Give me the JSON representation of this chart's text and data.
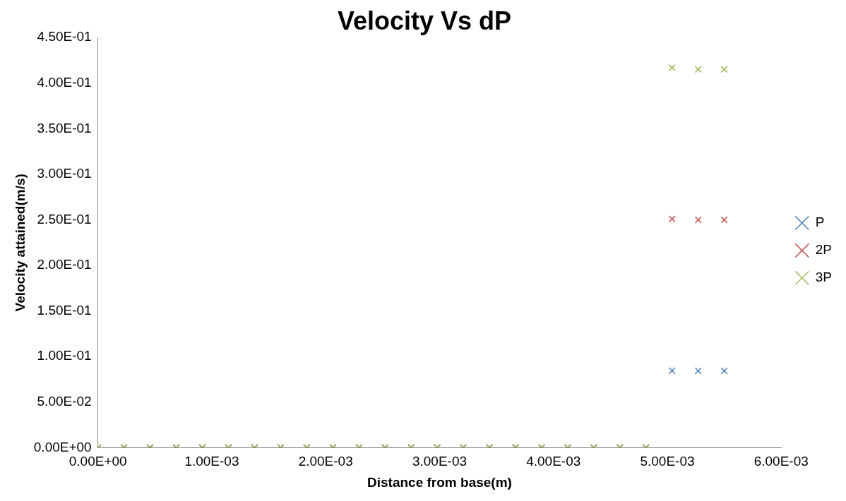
{
  "chart_data": {
    "type": "scatter",
    "title": "Velocity Vs dP",
    "xlabel": "Distance from base(m)",
    "ylabel": "Velocity attained(m/s)",
    "x": [
      0,
      0.000229,
      0.000458,
      0.000688,
      0.000917,
      0.001146,
      0.001375,
      0.001604,
      0.001833,
      0.002063,
      0.002292,
      0.002521,
      0.00275,
      0.002979,
      0.003208,
      0.003438,
      0.003667,
      0.003896,
      0.004125,
      0.004354,
      0.004583,
      0.004813,
      0.005042,
      0.005271,
      0.0055
    ],
    "series": [
      {
        "name": "P",
        "color": "#4f81bd",
        "values": [
          0,
          0,
          0,
          0,
          0,
          0,
          0,
          0,
          0,
          0,
          0,
          0,
          0,
          0,
          0,
          0,
          0,
          0,
          0,
          0,
          0,
          0,
          0.0845,
          0.0843,
          0.0843
        ]
      },
      {
        "name": "2P",
        "color": "#c0504d",
        "values": [
          0,
          0,
          0,
          0,
          0,
          0,
          0,
          0,
          0,
          0,
          0,
          0,
          0,
          0,
          0,
          0,
          0,
          0,
          0,
          0,
          0,
          0,
          0.251,
          0.25,
          0.25
        ]
      },
      {
        "name": "3P",
        "color": "#9bbb59",
        "values": [
          0,
          0,
          0,
          0,
          0,
          0,
          0,
          0,
          0,
          0,
          0,
          0,
          0,
          0,
          0,
          0,
          0,
          0,
          0,
          0,
          0,
          0,
          0.417,
          0.415,
          0.415
        ]
      }
    ],
    "xlim": [
      0,
      0.006
    ],
    "xticks": [
      {
        "value": 0,
        "label": "0.00E+00"
      },
      {
        "value": 0.001,
        "label": "1.00E-03"
      },
      {
        "value": 0.002,
        "label": "2.00E-03"
      },
      {
        "value": 0.003,
        "label": "3.00E-03"
      },
      {
        "value": 0.004,
        "label": "4.00E-03"
      },
      {
        "value": 0.005,
        "label": "5.00E-03"
      },
      {
        "value": 0.006,
        "label": "6.00E-03"
      }
    ],
    "ylim": [
      0,
      0.45
    ],
    "yticks": [
      {
        "value": 0,
        "label": "0.00E+00"
      },
      {
        "value": 0.05,
        "label": "5.00E-02"
      },
      {
        "value": 0.1,
        "label": "1.00E-01"
      },
      {
        "value": 0.15,
        "label": "1.50E-01"
      },
      {
        "value": 0.2,
        "label": "2.00E-01"
      },
      {
        "value": 0.25,
        "label": "2.50E-01"
      },
      {
        "value": 0.3,
        "label": "3.00E-01"
      },
      {
        "value": 0.35,
        "label": "3.50E-01"
      },
      {
        "value": 0.4,
        "label": "4.00E-01"
      },
      {
        "value": 0.45,
        "label": "4.50E-01"
      }
    ],
    "grid": false,
    "legend": "right",
    "marker": "cross"
  }
}
